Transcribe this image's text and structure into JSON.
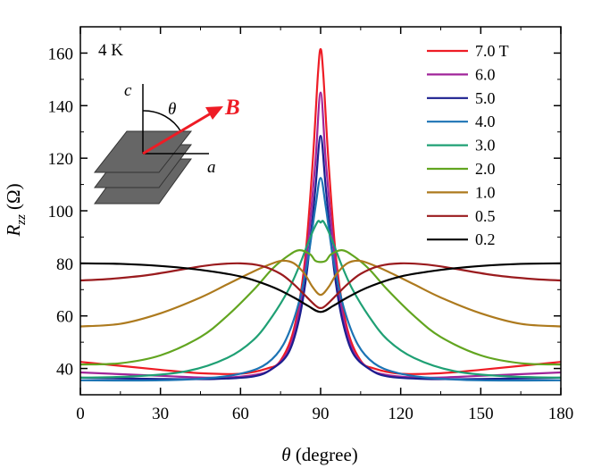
{
  "chart_data": {
    "type": "line",
    "title": "",
    "xlabel_symbol": "θ",
    "xlabel_unit": "(degree)",
    "ylabel_symbol": "R",
    "ylabel_sub": "zz",
    "ylabel_unit": "(Ω)",
    "xlim": [
      0,
      180
    ],
    "ylim": [
      30,
      170
    ],
    "xticks": [
      0,
      30,
      60,
      90,
      120,
      150,
      180
    ],
    "yticks": [
      40,
      60,
      80,
      100,
      120,
      140,
      160
    ],
    "grid": false,
    "legend_position": "top-right",
    "annotations": {
      "temperature": "4 K",
      "axis_c": "c",
      "axis_a": "a",
      "angle": "θ",
      "field": "B"
    },
    "series": [
      {
        "name": "7.0 T",
        "color": "#ee1c25",
        "points": [
          [
            0,
            42.5
          ],
          [
            15,
            41
          ],
          [
            30,
            39.5
          ],
          [
            45,
            38.2
          ],
          [
            60,
            38
          ],
          [
            70,
            40
          ],
          [
            75,
            43
          ],
          [
            80,
            55
          ],
          [
            84,
            80
          ],
          [
            87,
            118
          ],
          [
            89,
            152
          ],
          [
            90,
            161.5
          ],
          [
            91,
            152
          ],
          [
            93,
            118
          ],
          [
            96,
            80
          ],
          [
            100,
            55
          ],
          [
            105,
            43
          ],
          [
            110,
            40
          ],
          [
            120,
            38
          ],
          [
            135,
            38.2
          ],
          [
            150,
            39.5
          ],
          [
            165,
            41
          ],
          [
            180,
            42.5
          ]
        ]
      },
      {
        "name": "6.0",
        "color": "#a0259a",
        "points": [
          [
            0,
            38.5
          ],
          [
            30,
            37.2
          ],
          [
            50,
            36.5
          ],
          [
            65,
            37.5
          ],
          [
            72,
            40
          ],
          [
            78,
            47
          ],
          [
            82,
            62
          ],
          [
            85,
            85
          ],
          [
            88,
            118
          ],
          [
            90,
            145
          ],
          [
            92,
            118
          ],
          [
            95,
            85
          ],
          [
            98,
            62
          ],
          [
            102,
            47
          ],
          [
            108,
            40
          ],
          [
            115,
            37.5
          ],
          [
            130,
            36.5
          ],
          [
            150,
            37.2
          ],
          [
            180,
            38.5
          ]
        ]
      },
      {
        "name": "5.0",
        "color": "#1b1f8f",
        "points": [
          [
            0,
            36.5
          ],
          [
            30,
            36
          ],
          [
            50,
            36
          ],
          [
            65,
            37
          ],
          [
            72,
            40
          ],
          [
            78,
            46
          ],
          [
            82,
            59
          ],
          [
            85,
            78
          ],
          [
            88,
            108
          ],
          [
            90,
            128.5
          ],
          [
            92,
            108
          ],
          [
            95,
            78
          ],
          [
            98,
            59
          ],
          [
            102,
            46
          ],
          [
            108,
            40
          ],
          [
            115,
            37
          ],
          [
            130,
            36
          ],
          [
            150,
            36
          ],
          [
            180,
            36.5
          ]
        ]
      },
      {
        "name": "4.0",
        "color": "#1c73b4",
        "points": [
          [
            0,
            35.5
          ],
          [
            30,
            35.5
          ],
          [
            50,
            36.5
          ],
          [
            62,
            38.5
          ],
          [
            70,
            42
          ],
          [
            76,
            49
          ],
          [
            81,
            62
          ],
          [
            85,
            80
          ],
          [
            88,
            101
          ],
          [
            90,
            112.5
          ],
          [
            92,
            101
          ],
          [
            95,
            80
          ],
          [
            99,
            62
          ],
          [
            104,
            49
          ],
          [
            110,
            42
          ],
          [
            118,
            38.5
          ],
          [
            130,
            36.5
          ],
          [
            150,
            35.5
          ],
          [
            180,
            35.5
          ]
        ]
      },
      {
        "name": "3.0",
        "color": "#1fa074",
        "points": [
          [
            0,
            36.5
          ],
          [
            20,
            37
          ],
          [
            40,
            39
          ],
          [
            55,
            44
          ],
          [
            65,
            51
          ],
          [
            72,
            60
          ],
          [
            78,
            70
          ],
          [
            82,
            79
          ],
          [
            85,
            87
          ],
          [
            87,
            92
          ],
          [
            89,
            96
          ],
          [
            90,
            95.5
          ],
          [
            91,
            96
          ],
          [
            93,
            92
          ],
          [
            95,
            87
          ],
          [
            98,
            79
          ],
          [
            102,
            70
          ],
          [
            108,
            60
          ],
          [
            115,
            51
          ],
          [
            125,
            44
          ],
          [
            140,
            39
          ],
          [
            160,
            37
          ],
          [
            180,
            36.5
          ]
        ]
      },
      {
        "name": "2.0",
        "color": "#62a520",
        "points": [
          [
            0,
            41.5
          ],
          [
            15,
            42
          ],
          [
            30,
            45
          ],
          [
            45,
            52
          ],
          [
            55,
            60
          ],
          [
            65,
            70
          ],
          [
            72,
            78
          ],
          [
            78,
            83
          ],
          [
            82,
            85
          ],
          [
            86,
            83.5
          ],
          [
            88,
            81
          ],
          [
            90,
            80.5
          ],
          [
            92,
            81
          ],
          [
            94,
            83.5
          ],
          [
            98,
            85
          ],
          [
            102,
            83
          ],
          [
            108,
            78
          ],
          [
            115,
            70
          ],
          [
            125,
            60
          ],
          [
            135,
            52
          ],
          [
            150,
            45
          ],
          [
            165,
            42
          ],
          [
            180,
            41.5
          ]
        ]
      },
      {
        "name": "1.0",
        "color": "#ad7a1e",
        "points": [
          [
            0,
            56
          ],
          [
            15,
            57
          ],
          [
            30,
            61
          ],
          [
            45,
            67
          ],
          [
            55,
            72
          ],
          [
            65,
            77
          ],
          [
            72,
            80
          ],
          [
            76,
            81
          ],
          [
            80,
            80
          ],
          [
            84,
            76
          ],
          [
            87,
            71
          ],
          [
            90,
            68
          ],
          [
            93,
            71
          ],
          [
            96,
            76
          ],
          [
            100,
            80
          ],
          [
            104,
            81
          ],
          [
            108,
            80
          ],
          [
            115,
            77
          ],
          [
            125,
            72
          ],
          [
            135,
            67
          ],
          [
            150,
            61
          ],
          [
            165,
            57
          ],
          [
            180,
            56
          ]
        ]
      },
      {
        "name": "0.5",
        "color": "#9a1b1e",
        "points": [
          [
            0,
            73.5
          ],
          [
            10,
            74
          ],
          [
            25,
            75.5
          ],
          [
            40,
            78
          ],
          [
            50,
            79.5
          ],
          [
            60,
            80
          ],
          [
            68,
            79
          ],
          [
            75,
            76
          ],
          [
            80,
            72
          ],
          [
            84,
            68
          ],
          [
            88,
            64
          ],
          [
            90,
            63
          ],
          [
            92,
            64
          ],
          [
            96,
            68
          ],
          [
            100,
            72
          ],
          [
            105,
            76
          ],
          [
            112,
            79
          ],
          [
            120,
            80
          ],
          [
            130,
            79.5
          ],
          [
            140,
            78
          ],
          [
            155,
            75.5
          ],
          [
            170,
            74
          ],
          [
            180,
            73.5
          ]
        ]
      },
      {
        "name": "0.2",
        "color": "#000000",
        "points": [
          [
            0,
            80
          ],
          [
            15,
            79.8
          ],
          [
            30,
            79
          ],
          [
            45,
            77.5
          ],
          [
            60,
            75
          ],
          [
            72,
            71
          ],
          [
            80,
            67
          ],
          [
            85,
            64
          ],
          [
            90,
            61.5
          ],
          [
            95,
            64
          ],
          [
            100,
            67
          ],
          [
            108,
            71
          ],
          [
            120,
            75
          ],
          [
            135,
            77.5
          ],
          [
            150,
            79
          ],
          [
            165,
            79.8
          ],
          [
            180,
            80
          ]
        ]
      }
    ]
  }
}
